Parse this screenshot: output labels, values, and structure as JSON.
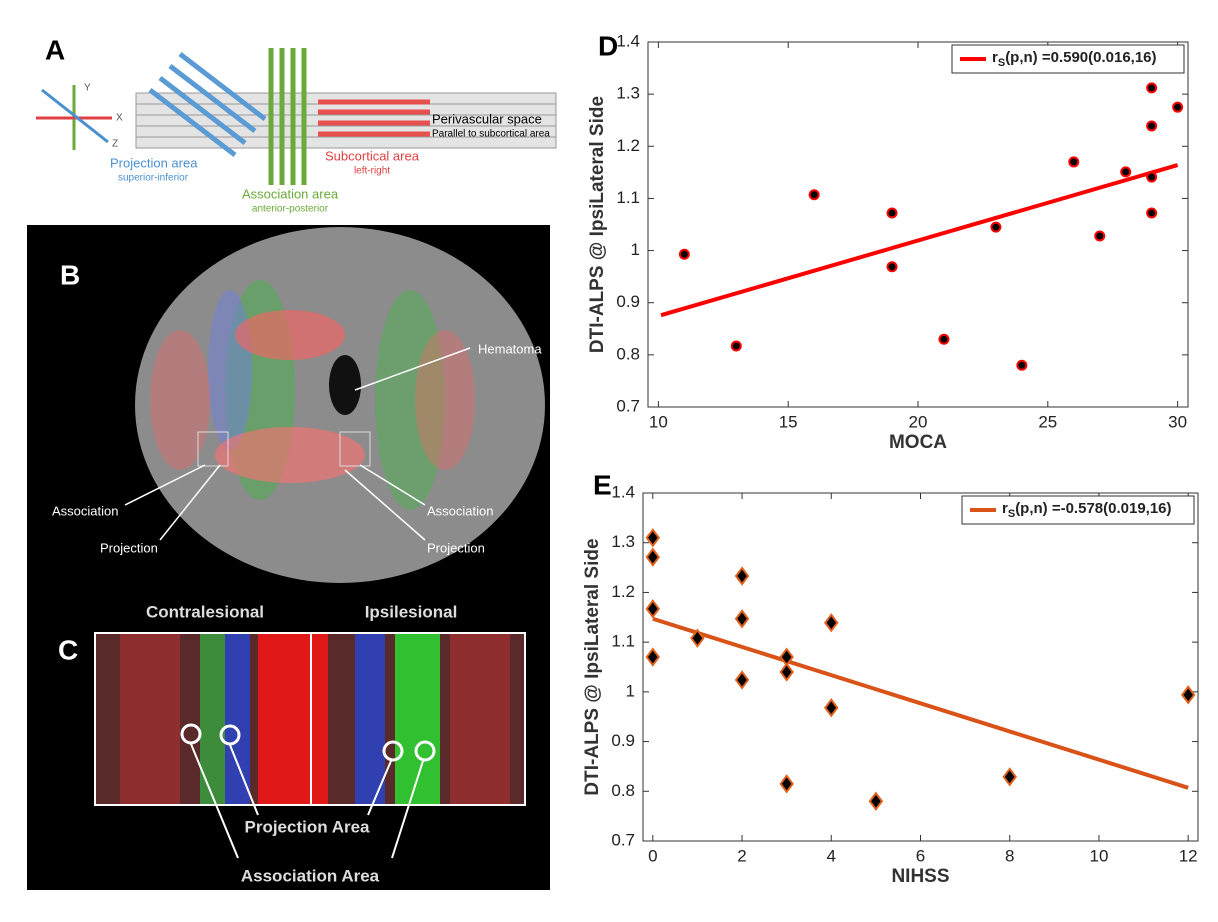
{
  "diagram_a": {
    "label": "A",
    "axis_y": "Y",
    "axis_x": "X",
    "axis_z": "Z",
    "projection": "Projection area",
    "projection_dir": "superior-inferior",
    "association": "Association area",
    "association_dir": "anterior-posterior",
    "subcortical": "Subcortical area",
    "subcortical_dir": "left-right",
    "pvs": "Perivascular space",
    "pvs_note": "Parallel to subcortical area"
  },
  "image_b": {
    "label": "B",
    "hematoma": "Hematoma",
    "association_left": "Association",
    "projection_left": "Projection",
    "association_right": "Association",
    "projection_right": "Projection"
  },
  "image_c": {
    "label": "C",
    "left": "Contralesional",
    "right": "Ipsilesional",
    "projection": "Projection Area",
    "association": "Association Area"
  },
  "chart_data": [
    {
      "type": "scatter",
      "panel": "D",
      "xlabel": "MOCA",
      "ylabel": "DTI-ALPS @ IpsiLateral Side",
      "x": [
        11,
        13,
        16,
        19,
        19,
        21,
        23,
        24,
        26,
        27,
        28,
        29,
        29,
        29,
        29,
        30
      ],
      "values": [
        0.993,
        0.817,
        1.107,
        1.072,
        0.969,
        0.83,
        1.045,
        0.78,
        1.17,
        1.028,
        1.151,
        1.312,
        1.239,
        1.141,
        1.072,
        1.275
      ],
      "marker": "circle",
      "marker_fill": "#000000",
      "color": "#ff0000",
      "fit": {
        "x": [
          10.1,
          30
        ],
        "y": [
          0.876,
          1.164
        ],
        "color": "#ff0000"
      },
      "legend": {
        "base": "r",
        "sub": "S",
        "text": "(p,n) =0.590(0.016,16)"
      },
      "legend_position": "upper right",
      "xlim": [
        9.6,
        30.4
      ],
      "xticks": [
        10,
        15,
        20,
        25,
        30
      ],
      "ylim": [
        0.7,
        1.4
      ],
      "yticks": [
        0.7,
        0.8,
        0.9,
        1,
        1.1,
        1.2,
        1.3,
        1.4
      ],
      "grid": false
    },
    {
      "type": "scatter",
      "panel": "E",
      "xlabel": "NIHSS",
      "ylabel": "DTI-ALPS @ IpsiLateral Side",
      "x": [
        0,
        0,
        0,
        0,
        1,
        2,
        2,
        2,
        3,
        3,
        3,
        4,
        4,
        5,
        8,
        12
      ],
      "values": [
        1.31,
        1.271,
        1.167,
        1.07,
        1.108,
        1.233,
        1.147,
        1.024,
        1.07,
        1.04,
        0.815,
        1.139,
        0.968,
        0.78,
        0.829,
        0.994
      ],
      "marker": "diamond",
      "marker_fill": "#000000",
      "color": "#e0601c",
      "fit": {
        "x": [
          0,
          12
        ],
        "y": [
          1.147,
          0.807
        ],
        "color": "#d95319"
      },
      "legend": {
        "base": "r",
        "sub": "S",
        "text": "(p,n) =-0.578(0.019,16)"
      },
      "legend_position": "upper right",
      "xlim": [
        -0.22,
        12.22
      ],
      "xticks": [
        0,
        2,
        4,
        6,
        8,
        10,
        12
      ],
      "ylim": [
        0.7,
        1.4
      ],
      "yticks": [
        0.7,
        0.8,
        0.9,
        1,
        1.1,
        1.2,
        1.3,
        1.4
      ],
      "grid": false
    }
  ]
}
